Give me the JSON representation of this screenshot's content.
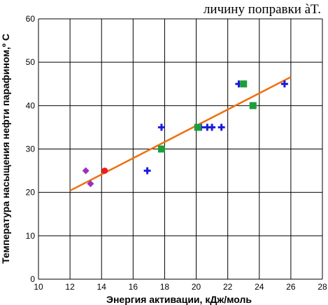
{
  "header_text": "личину поправки àT.",
  "chart_data": {
    "type": "scatter",
    "title": "",
    "xlabel": "Энергия активации,  кДж/моль",
    "ylabel": "Температура насыщения нефти парафином,º С",
    "xlim": [
      10,
      28
    ],
    "ylim": [
      0,
      60
    ],
    "x_ticks": [
      "10",
      "12",
      "14",
      "16",
      "18",
      "20",
      "22",
      "24",
      "26",
      "28"
    ],
    "y_ticks": [
      "0",
      "10",
      "20",
      "30",
      "40",
      "50",
      "60"
    ],
    "grid": true,
    "series": [
      {
        "marker": "diamond",
        "color": "#9b30c0",
        "points": [
          [
            13.0,
            25
          ],
          [
            13.3,
            22
          ]
        ]
      },
      {
        "marker": "circle",
        "color": "#ee1c1c",
        "points": [
          [
            14.2,
            25
          ]
        ]
      },
      {
        "marker": "cross",
        "color": "#1a1adb",
        "points": [
          [
            16.9,
            25
          ],
          [
            17.8,
            35
          ],
          [
            20.3,
            35
          ],
          [
            20.7,
            35
          ],
          [
            21.0,
            35
          ],
          [
            21.6,
            35
          ],
          [
            22.7,
            45
          ],
          [
            25.6,
            45
          ]
        ]
      },
      {
        "marker": "square",
        "color": "#1c9e3c",
        "points": [
          [
            17.8,
            30
          ],
          [
            20.1,
            35
          ],
          [
            23.0,
            45
          ],
          [
            23.6,
            40
          ]
        ]
      }
    ],
    "trendline": {
      "color": "#f07010",
      "points": [
        [
          12.0,
          20.4
        ],
        [
          26.0,
          46.6
        ]
      ]
    }
  }
}
